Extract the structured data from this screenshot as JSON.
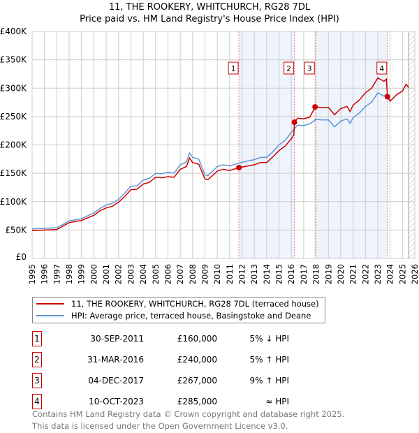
{
  "chart_data": {
    "type": "line",
    "title": "11, THE ROOKERY, WHITCHURCH, RG28 7DL",
    "subtitle": "Price paid vs. HM Land Registry's House Price Index (HPI)",
    "xlim": [
      1995,
      2026
    ],
    "ylim": [
      0,
      400000
    ],
    "yticks": [
      {
        "v": 0,
        "label": "£0"
      },
      {
        "v": 50000,
        "label": "£50K"
      },
      {
        "v": 100000,
        "label": "£100K"
      },
      {
        "v": 150000,
        "label": "£150K"
      },
      {
        "v": 200000,
        "label": "£200K"
      },
      {
        "v": 250000,
        "label": "£250K"
      },
      {
        "v": 300000,
        "label": "£300K"
      },
      {
        "v": 350000,
        "label": "£350K"
      },
      {
        "v": 400000,
        "label": "£400K"
      }
    ],
    "xticks": [
      "1995",
      "1996",
      "1997",
      "1998",
      "1999",
      "2000",
      "2001",
      "2002",
      "2003",
      "2004",
      "2005",
      "2006",
      "2007",
      "2008",
      "2009",
      "2010",
      "2011",
      "2012",
      "2013",
      "2014",
      "2015",
      "2016",
      "2017",
      "2018",
      "2019",
      "2020",
      "2021",
      "2022",
      "2023",
      "2024",
      "2025",
      "2026"
    ],
    "grid": true,
    "shaded_ranges": [
      [
        2011.75,
        2016.25
      ],
      [
        2017.92,
        2023.78
      ]
    ],
    "forecast_start": 2025.5,
    "series": [
      {
        "name": "11, THE ROOKERY, WHITCHURCH, RG28 7DL (terraced house)",
        "color": "#cc0000",
        "x": [
          1995,
          1996,
          1997,
          1997.5,
          1998,
          1999,
          2000,
          2000.5,
          2001,
          2001.5,
          2002,
          2002.5,
          2003,
          2003.5,
          2004,
          2004.5,
          2005,
          2005.5,
          2006,
          2006.5,
          2007,
          2007.5,
          2007.75,
          2008,
          2008.5,
          2009,
          2009.25,
          2010,
          2010.5,
          2011,
          2011.75,
          2012.5,
          2013,
          2013.5,
          2014,
          2014.5,
          2015,
          2015.5,
          2016,
          2016.2,
          2016.25,
          2016.5,
          2017,
          2017.5,
          2017.92,
          2018.5,
          2019,
          2019.5,
          2020,
          2020.5,
          2020.75,
          2021,
          2021.5,
          2022,
          2022.5,
          2023,
          2023.5,
          2023.7,
          2023.78,
          2024,
          2024.5,
          2025,
          2025.3,
          2025.5
        ],
        "y": [
          49000,
          50000,
          51000,
          57000,
          63000,
          67000,
          76000,
          84000,
          89000,
          92000,
          99000,
          109000,
          121000,
          122000,
          131000,
          134000,
          143000,
          142000,
          144000,
          143000,
          157000,
          162000,
          177000,
          169000,
          166000,
          140000,
          139000,
          154000,
          157000,
          155000,
          160000,
          163000,
          165000,
          169000,
          169000,
          179000,
          190000,
          198000,
          211000,
          218000,
          240000,
          247000,
          246000,
          249000,
          267000,
          266000,
          266000,
          253000,
          264000,
          268000,
          259000,
          270000,
          279000,
          292000,
          300000,
          318000,
          312000,
          316000,
          285000,
          277000,
          288000,
          295000,
          307000,
          301000
        ]
      },
      {
        "name": "HPI: Average price, terraced house, Basingstoke and Deane",
        "color": "#6095d4",
        "x": [
          1995,
          1996,
          1997,
          1997.5,
          1998,
          1999,
          2000,
          2000.5,
          2001,
          2001.5,
          2002,
          2002.5,
          2003,
          2003.5,
          2004,
          2004.5,
          2005,
          2005.5,
          2006,
          2006.5,
          2007,
          2007.5,
          2007.75,
          2008,
          2008.5,
          2009,
          2009.25,
          2010,
          2010.5,
          2011,
          2011.75,
          2012.5,
          2013,
          2013.5,
          2014,
          2014.5,
          2015,
          2015.5,
          2016,
          2016.5,
          2017,
          2017.5,
          2018,
          2018.5,
          2019,
          2019.5,
          2020,
          2020.5,
          2020.75,
          2021,
          2021.5,
          2022,
          2022.5,
          2023,
          2023.5,
          2023.78,
          2024,
          2024.5,
          2025,
          2025.3,
          2025.5
        ],
        "y": [
          52000,
          53000,
          54000,
          60000,
          66000,
          70000,
          80000,
          88000,
          94000,
          97000,
          104000,
          115000,
          127000,
          128000,
          138000,
          141000,
          150000,
          149000,
          152000,
          150000,
          165000,
          170000,
          186000,
          178000,
          175000,
          147000,
          146000,
          162000,
          165000,
          163000,
          168000,
          172000,
          174000,
          178000,
          178000,
          188000,
          200000,
          208000,
          222000,
          235000,
          234000,
          237000,
          245000,
          244000,
          244000,
          232000,
          242000,
          246000,
          238000,
          248000,
          256000,
          268000,
          275000,
          292000,
          286000,
          290000,
          277000,
          288000,
          295000,
          307000,
          301000
        ]
      }
    ],
    "sales": [
      {
        "label": "1",
        "x": 2011.75,
        "y": 160000,
        "date": "30-SEP-2011",
        "price": "£160,000",
        "hpi": "5% ↓ HPI"
      },
      {
        "label": "2",
        "x": 2016.25,
        "y": 240000,
        "date": "31-MAR-2016",
        "price": "£240,000",
        "hpi": "5% ↑ HPI"
      },
      {
        "label": "3",
        "x": 2017.92,
        "y": 267000,
        "date": "04-DEC-2017",
        "price": "£267,000",
        "hpi": "9% ↑ HPI"
      },
      {
        "label": "4",
        "x": 2023.78,
        "y": 285000,
        "date": "10-OCT-2023",
        "price": "£285,000",
        "hpi": "≈ HPI"
      }
    ]
  },
  "footer": {
    "line1": "Contains HM Land Registry data © Crown copyright and database right 2025.",
    "line2": "This data is licensed under the Open Government Licence v3.0."
  }
}
